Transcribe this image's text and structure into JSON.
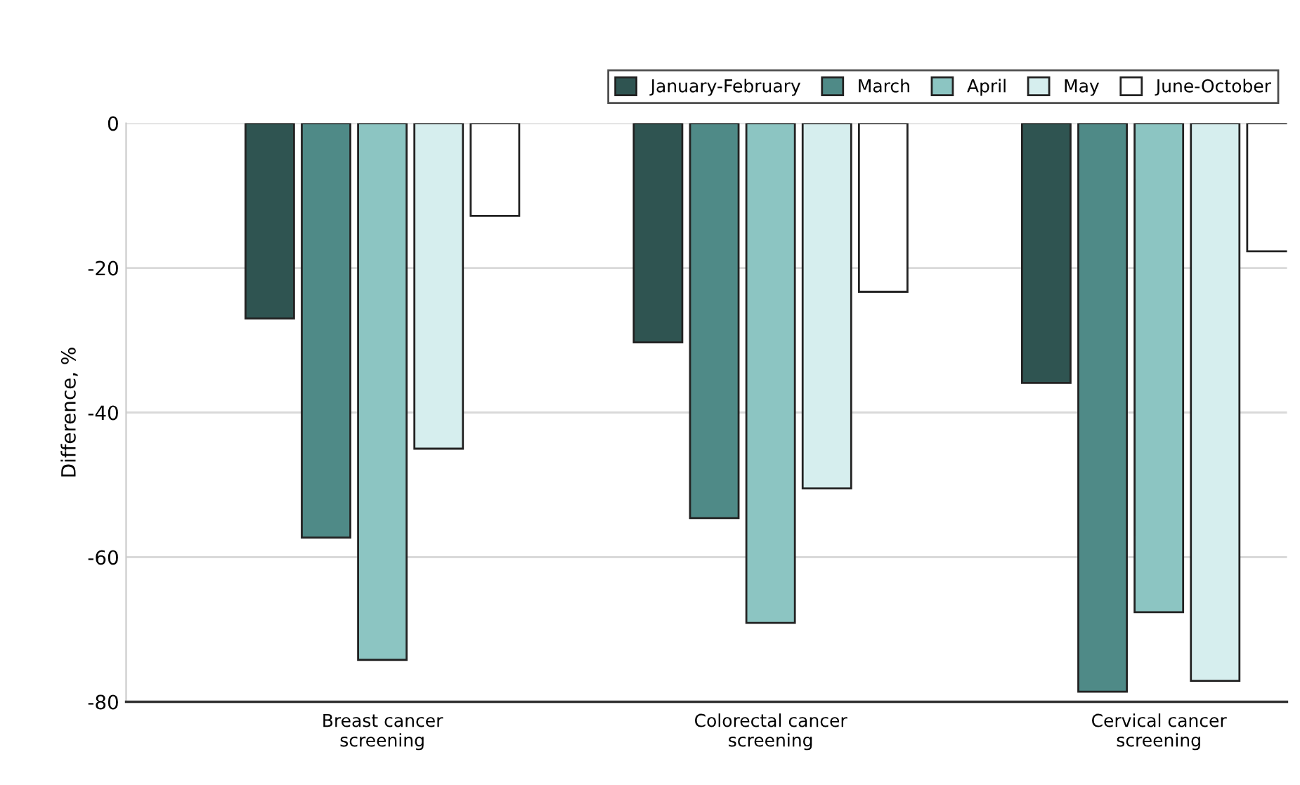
{
  "chart_data": {
    "type": "bar",
    "ylabel": "Difference, %",
    "categories": [
      "Breast cancer\nscreening",
      "Colorectal cancer\nscreening",
      "Cervical cancer\nscreening"
    ],
    "series": [
      {
        "name": "January-February",
        "color": "#2f5451",
        "values": [
          -27.0,
          -30.3,
          -35.9
        ]
      },
      {
        "name": "March",
        "color": "#4f8a87",
        "values": [
          -57.3,
          -54.6,
          -78.6
        ]
      },
      {
        "name": "April",
        "color": "#8cc5c2",
        "values": [
          -74.2,
          -69.1,
          -67.6
        ]
      },
      {
        "name": "May",
        "color": "#d6eeee",
        "values": [
          -45.0,
          -50.5,
          -77.1
        ]
      },
      {
        "name": "June-October",
        "color": "#ffffff",
        "values": [
          -12.8,
          -23.3,
          -17.7
        ]
      }
    ],
    "ylim": [
      -80,
      0
    ],
    "yticks": [
      0,
      -20,
      -40,
      -60,
      -80
    ],
    "grid": "y",
    "legend": "top right"
  }
}
